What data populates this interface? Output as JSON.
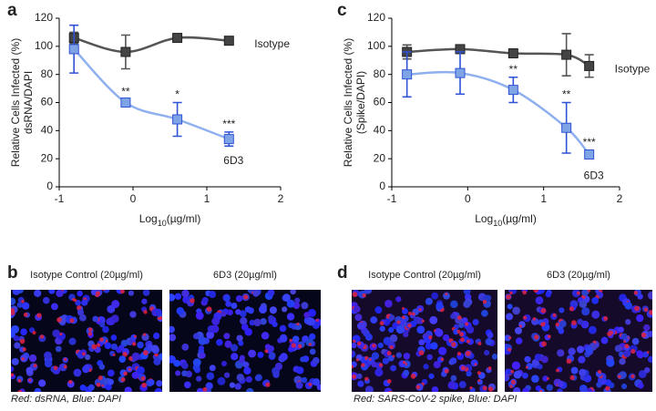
{
  "chart_data": [
    {
      "type": "line",
      "panel": "a",
      "ylabel": [
        "Relative Cells Infected (%)",
        "dsRNA/DAPI"
      ],
      "xlabel": [
        "Log",
        "10",
        "(µg/ml)"
      ],
      "xlim": [
        -1,
        2
      ],
      "xticks": [
        -1,
        0,
        1,
        2
      ],
      "ylim": [
        0,
        120
      ],
      "yticks": [
        0,
        20,
        40,
        60,
        80,
        100,
        120
      ],
      "series": [
        {
          "name": "Isotype",
          "color": "#555555",
          "fill": "#444444",
          "x": [
            -0.8,
            -0.1,
            0.6,
            1.3
          ],
          "values": [
            106,
            96,
            106,
            104
          ],
          "errors": [
            4,
            12,
            1,
            1
          ],
          "significance": [
            null,
            null,
            null,
            null
          ]
        },
        {
          "name": "6D3",
          "color": "#8fb0ee",
          "fill": "#7fa4e6",
          "errcolor": "#2f52d6",
          "x": [
            -0.8,
            -0.1,
            0.6,
            1.3
          ],
          "values": [
            98,
            60,
            48,
            34
          ],
          "errors": [
            17,
            2,
            12,
            5
          ],
          "significance": [
            null,
            "**",
            "*",
            "***"
          ]
        }
      ]
    },
    {
      "type": "line",
      "panel": "c",
      "ylabel": [
        "Relative Cells Infected (%)",
        "(Spike/DAPI)"
      ],
      "xlabel": [
        "Log",
        "10",
        "(µg/ml)"
      ],
      "xlim": [
        -1,
        2
      ],
      "xticks": [
        -1,
        0,
        1,
        2
      ],
      "ylim": [
        0,
        120
      ],
      "yticks": [
        0,
        20,
        40,
        60,
        80,
        100,
        120
      ],
      "series": [
        {
          "name": "Isotype",
          "color": "#555555",
          "fill": "#444444",
          "x": [
            -0.8,
            -0.1,
            0.6,
            1.3,
            1.6
          ],
          "values": [
            96,
            98,
            95,
            94,
            86
          ],
          "errors": [
            5,
            1,
            1,
            15,
            8
          ],
          "significance": [
            null,
            null,
            null,
            null,
            null
          ]
        },
        {
          "name": "6D3",
          "color": "#8fb0ee",
          "fill": "#7fa4e6",
          "errcolor": "#2f52d6",
          "x": [
            -0.8,
            -0.1,
            0.6,
            1.3,
            1.6
          ],
          "values": [
            80,
            81,
            69,
            42,
            23
          ],
          "errors": [
            16,
            15,
            9,
            18,
            3
          ],
          "significance": [
            null,
            null,
            "**",
            "**",
            "***"
          ]
        }
      ]
    }
  ],
  "image_panels": [
    {
      "panel": "b",
      "labels": [
        "Isotype Control (20µg/ml)",
        "6D3 (20µg/ml)"
      ],
      "caption": "Red: dsRNA, Blue: DAPI"
    },
    {
      "panel": "d",
      "labels": [
        "Isotype Control (20µg/ml)",
        "6D3 (20µg/ml)"
      ],
      "caption": "Red: SARS-CoV-2 spike, Blue: DAPI"
    }
  ]
}
